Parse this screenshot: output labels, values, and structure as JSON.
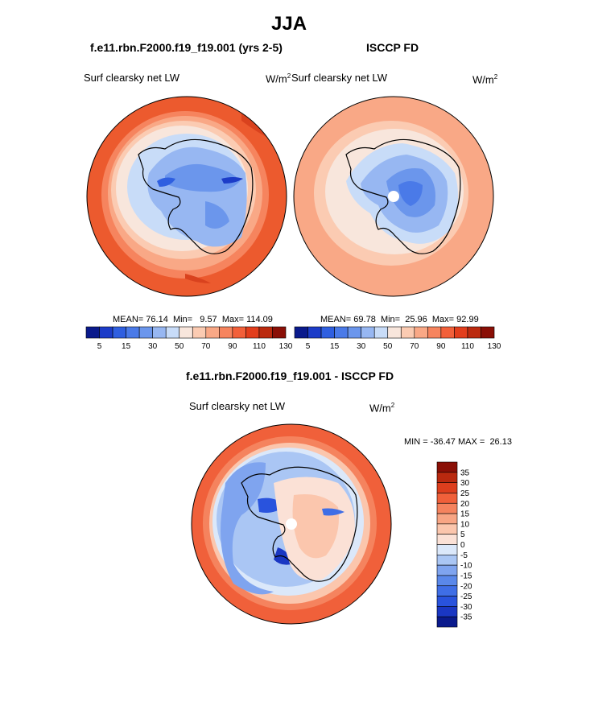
{
  "page": {
    "season": "JJA",
    "panel1_title": "f.e11.rbn.F2000.f19_f19.001 (yrs 2-5)",
    "panel2_title": "ISCCP FD",
    "diff_title": "f.e11.rbn.F2000.f19_f19.001 - ISCCP FD"
  },
  "chart_data": [
    {
      "type": "heatmap",
      "projection": "south-polar-stereographic",
      "title": "f.e11.rbn.F2000.f19_f19.001 (yrs 2-5)",
      "variable": "Surf clearsky net LW",
      "units": "W/m",
      "units_exp": "2",
      "stats": {
        "mean_label": "MEAN=",
        "mean": "76.14",
        "min_label": "Min=",
        "min": "9.57",
        "max_label": "Max=",
        "max": "114.09"
      },
      "colorbar_ticks": [
        "5",
        "15",
        "30",
        "50",
        "70",
        "90",
        "110",
        "130"
      ]
    },
    {
      "type": "heatmap",
      "projection": "south-polar-stereographic",
      "title": "ISCCP FD",
      "variable": "Surf clearsky net LW",
      "units": "W/m",
      "units_exp": "2",
      "stats": {
        "mean_label": "MEAN=",
        "mean": "69.78",
        "min_label": "Min=",
        "min": "25.96",
        "max_label": "Max=",
        "max": "92.99"
      },
      "colorbar_ticks": [
        "5",
        "15",
        "30",
        "50",
        "70",
        "90",
        "110",
        "130"
      ]
    },
    {
      "type": "heatmap",
      "projection": "south-polar-stereographic",
      "title": "f.e11.rbn.F2000.f19_f19.001 - ISCCP FD",
      "variable": "Surf clearsky net LW",
      "units": "W/m",
      "units_exp": "2",
      "stats": {
        "min_label": "MIN =",
        "min": "-36.47",
        "max_label": "MAX =",
        "max": "26.13"
      },
      "colorbar_ticks": [
        "35",
        "30",
        "25",
        "20",
        "15",
        "10",
        "5",
        "0",
        "-5",
        "-10",
        "-15",
        "-20",
        "-25",
        "-30",
        "-35"
      ]
    }
  ],
  "colors": {
    "abs_scale": [
      "#0a1a8c",
      "#1c3cc8",
      "#2f5fe0",
      "#4a7ae8",
      "#6b96ec",
      "#97b7f2",
      "#c8dcf8",
      "#f8e6dc",
      "#fbcbb2",
      "#f9a886",
      "#f6845e",
      "#f2603a",
      "#e23e1c",
      "#bb2a0e",
      "#8a0f06"
    ],
    "diff_scale": [
      "#0a1a8c",
      "#1a37c3",
      "#2953dd",
      "#3f6ee6",
      "#5a88ea",
      "#7fa4ef",
      "#aac6f4",
      "#dbe8fa",
      "#fbe1d6",
      "#fbc6ad",
      "#f8a584",
      "#f5835e",
      "#f0603a",
      "#dd3e1d",
      "#b9290f",
      "#8a0f06"
    ]
  }
}
